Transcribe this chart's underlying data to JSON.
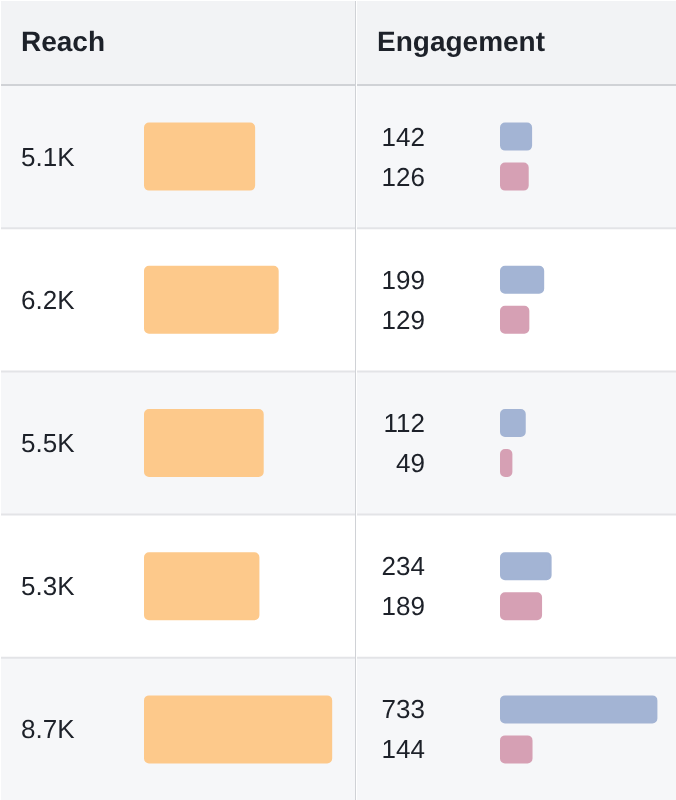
{
  "chart_data": [
    {
      "type": "bar",
      "orientation": "horizontal",
      "title": "Reach",
      "categories": [
        null,
        null,
        null,
        null,
        null
      ],
      "values": [
        5100,
        6200,
        5500,
        5300,
        8700
      ],
      "color": "#fdc98b",
      "value_labels": [
        "5.1K",
        "6.2K",
        "5.5K",
        "5.3K",
        "8.7K"
      ]
    },
    {
      "type": "bar",
      "orientation": "horizontal",
      "title": "Engagement",
      "categories": [
        null,
        null,
        null,
        null,
        null
      ],
      "series": [
        {
          "color": "#a3b4d4",
          "values": [
            142,
            199,
            112,
            234,
            733
          ],
          "value_labels": [
            "142",
            "199",
            "112",
            "234",
            "733"
          ]
        },
        {
          "color": "#d6a0b4",
          "values": [
            126,
            129,
            49,
            189,
            144
          ],
          "value_labels": [
            "126",
            "129",
            "49",
            "189",
            "144"
          ]
        }
      ]
    }
  ]
}
